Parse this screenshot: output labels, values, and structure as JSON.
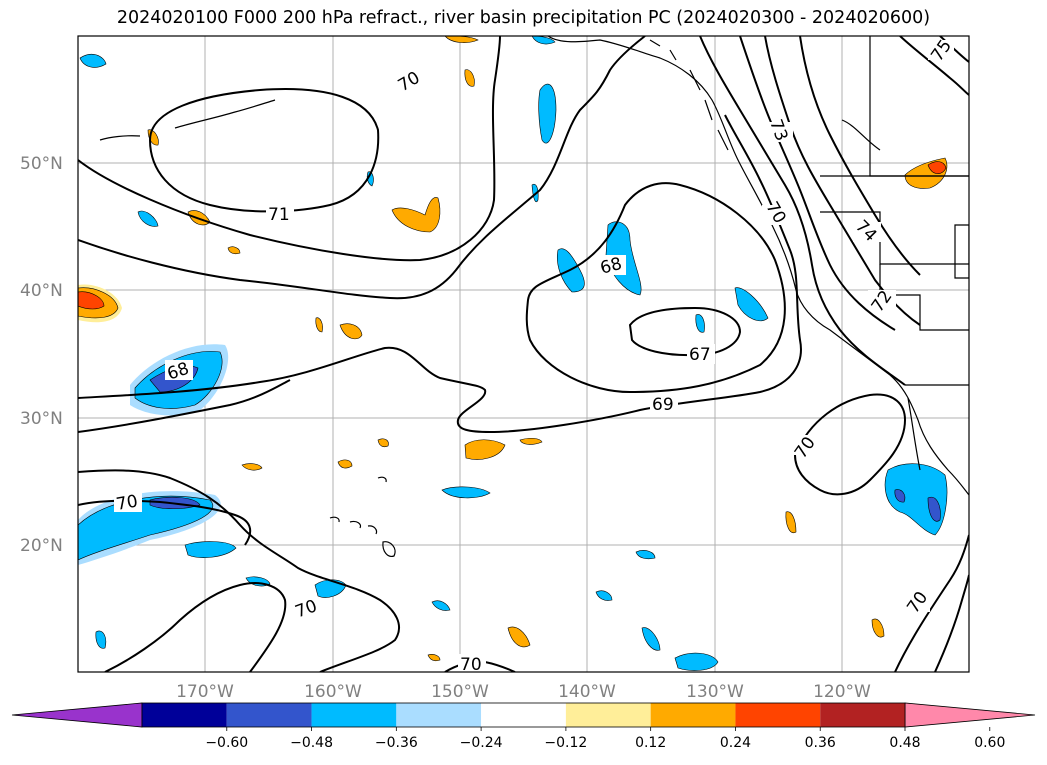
{
  "title": "2024020100 F000 200 hPa refract., river basin precipitation PC (2024020300 - 2024020600)",
  "lat_labels": [
    "50°N",
    "40°N",
    "30°N",
    "20°N"
  ],
  "lon_labels": [
    "170°W",
    "160°W",
    "150°W",
    "140°W",
    "130°W",
    "120°W"
  ],
  "contour_labels": [
    "71",
    "70",
    "68",
    "68",
    "67",
    "69",
    "70",
    "70",
    "70",
    "70",
    "70",
    "73",
    "70",
    "74",
    "72",
    "75"
  ],
  "colorbar": {
    "ticks": [
      "−0.60",
      "−0.48",
      "−0.36",
      "−0.24",
      "−0.12",
      "0.12",
      "0.24",
      "0.36",
      "0.48",
      "0.60"
    ],
    "colors": [
      "#9933cc",
      "#000099",
      "#3355cc",
      "#00bbff",
      "#aaddff",
      "#ffffff",
      "#ffee99",
      "#ffaa00",
      "#ff4400",
      "#b22222",
      "#ff88aa"
    ]
  }
}
